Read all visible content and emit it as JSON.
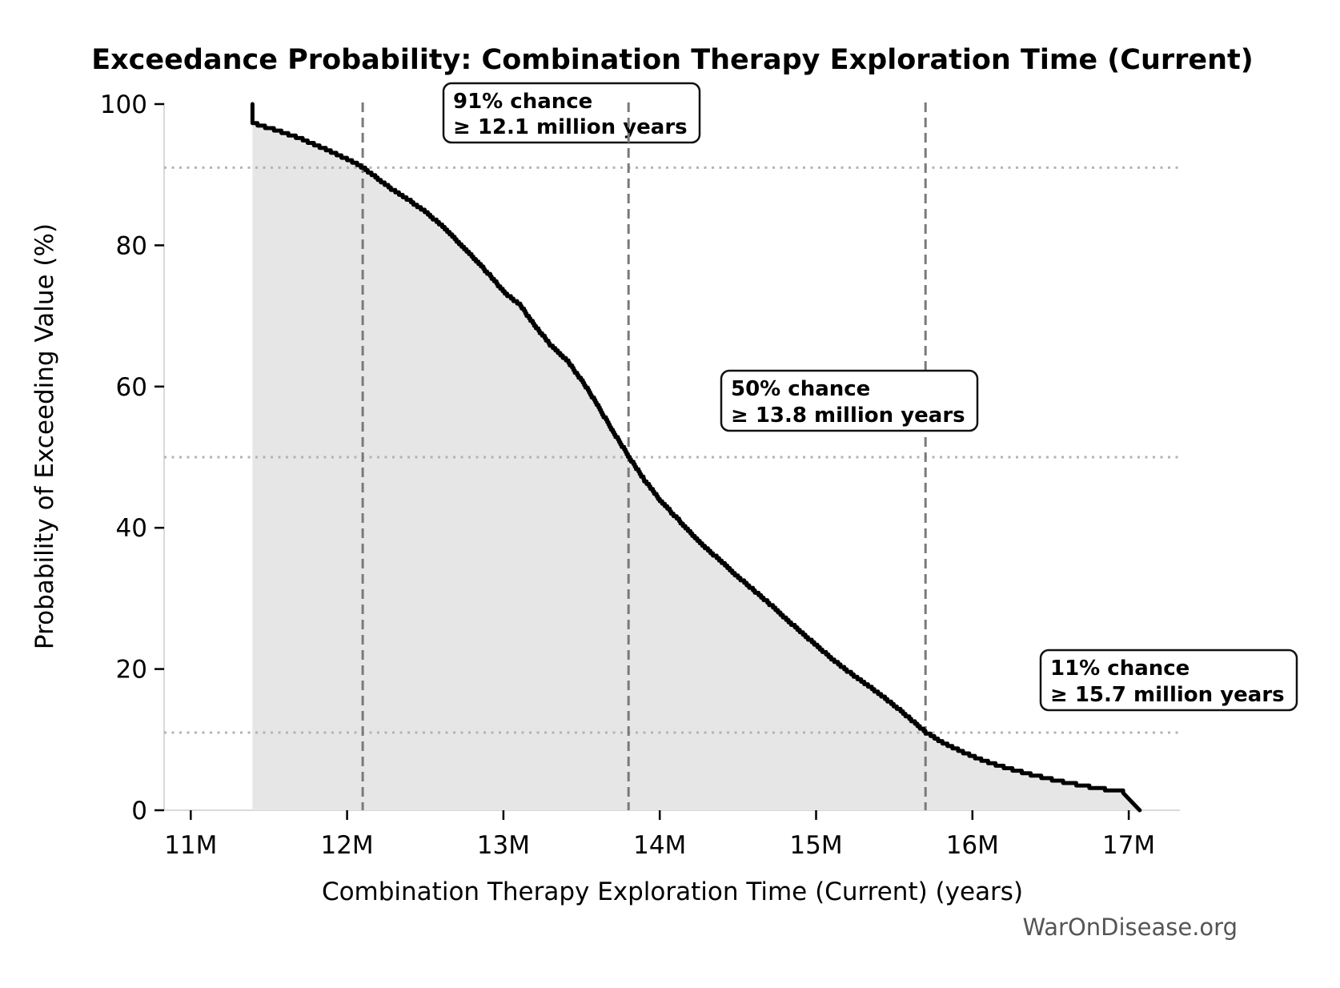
{
  "page": {
    "background": "#ffffff"
  },
  "header": {
    "title": "Exceedance Probability: Combination Therapy Exploration Time (Current)"
  },
  "footer": {
    "watermark": "WarOnDisease.org"
  },
  "chart_data": {
    "type": "line",
    "subtype": "exceedance-probability-curve",
    "title": "Exceedance Probability: Combination Therapy Exploration Time (Current)",
    "xlabel": "Combination Therapy Exploration Time (Current) (years)",
    "ylabel": "Probability of Exceeding Value (%)",
    "xlim": [
      10.8295,
      17.327
    ],
    "ylim": [
      0,
      100.23
    ],
    "grid": false,
    "legend": false,
    "x_ticks": [
      {
        "value": 11,
        "label": "11M"
      },
      {
        "value": 12,
        "label": "12M"
      },
      {
        "value": 13,
        "label": "13M"
      },
      {
        "value": 14,
        "label": "14M"
      },
      {
        "value": 15,
        "label": "15M"
      },
      {
        "value": 16,
        "label": "16M"
      },
      {
        "value": 17,
        "label": "17M"
      }
    ],
    "y_ticks": [
      {
        "value": 0,
        "label": "0"
      },
      {
        "value": 20,
        "label": "20"
      },
      {
        "value": 40,
        "label": "40"
      },
      {
        "value": 60,
        "label": "60"
      },
      {
        "value": 80,
        "label": "80"
      },
      {
        "value": 100,
        "label": "100"
      }
    ],
    "line_color": "#000000",
    "fill_color": "#e6e6e6",
    "vline_color": "#7a7a7a",
    "hline_color": "#b3b3b3",
    "annotations": [
      {
        "id": "p91",
        "line1": "91% chance",
        "line2": "≥ 12.1 million years",
        "x": 12.1,
        "probability": 91
      },
      {
        "id": "p50",
        "line1": "50% chance",
        "line2": "≥ 13.8 million years",
        "x": 13.8,
        "probability": 50
      },
      {
        "id": "p11",
        "line1": "11% chance",
        "line2": "≥ 15.7 million years",
        "x": 15.7,
        "probability": 11
      }
    ],
    "series": [
      {
        "name": "Exceedance Probability",
        "x_unit": "million years",
        "y_unit": "percent",
        "points": [
          [
            11.395,
            100
          ],
          [
            11.395,
            97.3
          ],
          [
            11.5,
            96.6
          ],
          [
            11.6,
            95.9
          ],
          [
            11.7,
            95.1
          ],
          [
            11.8,
            94.2
          ],
          [
            11.9,
            93.2
          ],
          [
            12.0,
            92.2
          ],
          [
            12.1,
            91.0
          ],
          [
            12.2,
            89.3
          ],
          [
            12.3,
            87.7
          ],
          [
            12.4,
            86.3
          ],
          [
            12.5,
            84.7
          ],
          [
            12.6,
            82.8
          ],
          [
            12.7,
            80.6
          ],
          [
            12.8,
            78.3
          ],
          [
            12.9,
            76.0
          ],
          [
            13.0,
            73.4
          ],
          [
            13.1,
            71.6
          ],
          [
            13.2,
            68.6
          ],
          [
            13.3,
            65.8
          ],
          [
            13.4,
            63.8
          ],
          [
            13.5,
            60.8
          ],
          [
            13.6,
            57.3
          ],
          [
            13.7,
            53.6
          ],
          [
            13.8,
            50.0
          ],
          [
            13.9,
            46.7
          ],
          [
            14.0,
            43.9
          ],
          [
            14.1,
            41.5
          ],
          [
            14.2,
            39.2
          ],
          [
            14.3,
            37.0
          ],
          [
            14.4,
            35.0
          ],
          [
            14.5,
            33.0
          ],
          [
            14.6,
            31.1
          ],
          [
            14.7,
            29.2
          ],
          [
            14.8,
            27.2
          ],
          [
            14.9,
            25.2
          ],
          [
            15.0,
            23.3
          ],
          [
            15.1,
            21.4
          ],
          [
            15.2,
            19.7
          ],
          [
            15.3,
            18.1
          ],
          [
            15.4,
            16.5
          ],
          [
            15.5,
            14.8
          ],
          [
            15.6,
            12.9
          ],
          [
            15.7,
            11.0
          ],
          [
            15.8,
            9.7
          ],
          [
            15.9,
            8.6
          ],
          [
            16.0,
            7.6
          ],
          [
            16.1,
            6.8
          ],
          [
            16.2,
            6.1
          ],
          [
            16.3,
            5.5
          ],
          [
            16.4,
            4.9
          ],
          [
            16.5,
            4.4
          ],
          [
            16.6,
            3.9
          ],
          [
            16.7,
            3.5
          ],
          [
            16.8,
            3.1
          ],
          [
            16.9,
            2.8
          ],
          [
            17.0,
            2.5
          ],
          [
            17.07,
            2.3
          ],
          [
            17.07,
            0
          ]
        ]
      }
    ]
  }
}
